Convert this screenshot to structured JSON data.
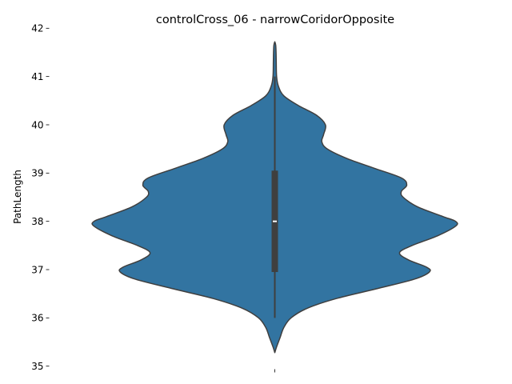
{
  "chart_data": {
    "type": "violin",
    "title": "controlCross_06 - narrowCoridorOpposite",
    "xlabel": "",
    "ylabel": "PathLength",
    "ylim": [
      34.97,
      42.03
    ],
    "yticks": [
      35,
      36,
      37,
      38,
      39,
      40,
      41,
      42
    ],
    "grid": false,
    "legend": "none",
    "colors": {
      "fill": "#3274a1",
      "edge": "#3f3f3f",
      "box": "#3f3f3f",
      "median": "#ffffff"
    },
    "series": [
      {
        "density_profile": [
          [
            35.28,
            0.0
          ],
          [
            35.4,
            0.01
          ],
          [
            35.6,
            0.03
          ],
          [
            35.8,
            0.05
          ],
          [
            36.0,
            0.09
          ],
          [
            36.2,
            0.18
          ],
          [
            36.4,
            0.34
          ],
          [
            36.6,
            0.56
          ],
          [
            36.8,
            0.77
          ],
          [
            36.95,
            0.855
          ],
          [
            37.05,
            0.84
          ],
          [
            37.2,
            0.74
          ],
          [
            37.35,
            0.69
          ],
          [
            37.5,
            0.76
          ],
          [
            37.7,
            0.9
          ],
          [
            37.9,
            1.0
          ],
          [
            38.0,
            1.0
          ],
          [
            38.1,
            0.93
          ],
          [
            38.3,
            0.79
          ],
          [
            38.5,
            0.71
          ],
          [
            38.62,
            0.7
          ],
          [
            38.75,
            0.73
          ],
          [
            38.9,
            0.7
          ],
          [
            39.1,
            0.55
          ],
          [
            39.3,
            0.4
          ],
          [
            39.5,
            0.29
          ],
          [
            39.65,
            0.26
          ],
          [
            39.8,
            0.27
          ],
          [
            40.0,
            0.28
          ],
          [
            40.2,
            0.23
          ],
          [
            40.4,
            0.13
          ],
          [
            40.6,
            0.05
          ],
          [
            40.8,
            0.02
          ],
          [
            41.0,
            0.01
          ],
          [
            41.3,
            0.008
          ],
          [
            41.5,
            0.007
          ],
          [
            41.65,
            0.005
          ],
          [
            41.72,
            0.0
          ]
        ],
        "min": 36.0,
        "q1": 36.95,
        "median": 38.0,
        "q3": 39.05,
        "max": 41.0
      }
    ]
  }
}
